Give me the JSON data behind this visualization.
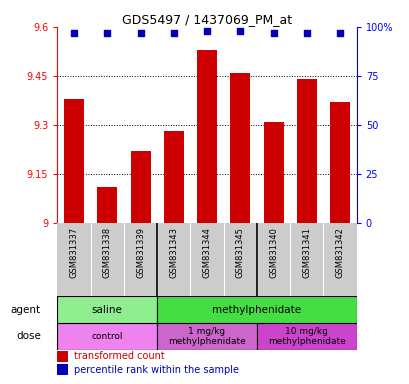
{
  "title": "GDS5497 / 1437069_PM_at",
  "samples": [
    "GSM831337",
    "GSM831338",
    "GSM831339",
    "GSM831343",
    "GSM831344",
    "GSM831345",
    "GSM831340",
    "GSM831341",
    "GSM831342"
  ],
  "red_values": [
    9.38,
    9.11,
    9.22,
    9.28,
    9.53,
    9.46,
    9.31,
    9.44,
    9.37
  ],
  "blue_values": [
    97,
    97,
    97,
    97,
    98,
    98,
    97,
    97,
    97
  ],
  "ylim_left": [
    9.0,
    9.6
  ],
  "ylim_right": [
    0,
    100
  ],
  "yticks_left": [
    9.0,
    9.15,
    9.3,
    9.45,
    9.6
  ],
  "yticks_right": [
    0,
    25,
    50,
    75,
    100
  ],
  "ytick_labels_left": [
    "9",
    "9.15",
    "9.3",
    "9.45",
    "9.6"
  ],
  "ytick_labels_right": [
    "0",
    "25",
    "50",
    "75",
    "100%"
  ],
  "hlines": [
    9.15,
    9.3,
    9.45
  ],
  "agent_groups": [
    {
      "label": "saline",
      "start": 0,
      "end": 3,
      "color": "#90EE90"
    },
    {
      "label": "methylphenidate",
      "start": 3,
      "end": 9,
      "color": "#44DD44"
    }
  ],
  "dose_groups": [
    {
      "label": "control",
      "start": 0,
      "end": 3,
      "color": "#EE82EE"
    },
    {
      "label": "1 mg/kg\nmethylphenidate",
      "start": 3,
      "end": 6,
      "color": "#CC66CC"
    },
    {
      "label": "10 mg/kg\nmethylphenidate",
      "start": 6,
      "end": 9,
      "color": "#CC44CC"
    }
  ],
  "bar_color": "#CC0000",
  "dot_color": "#0000BB",
  "bg_color": "#CCCCCC",
  "legend_red_label": "transformed count",
  "legend_blue_label": "percentile rank within the sample",
  "bar_bottom": 9.0
}
